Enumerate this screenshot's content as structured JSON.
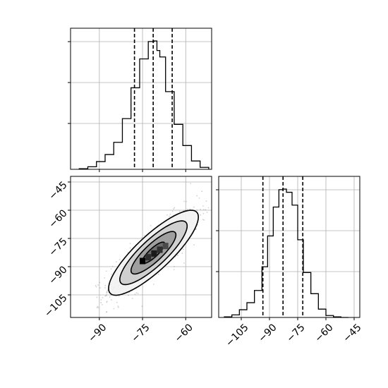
{
  "chart_data": [
    {
      "type": "histogram",
      "panel": "top-left",
      "parameter_index": 1,
      "xlim": [
        -100,
        -51
      ],
      "ylim": [
        0,
        1
      ],
      "grid": true,
      "show_y_tick_labels": false,
      "show_x_tick_labels": false,
      "bin_edges": [
        -97,
        -94,
        -91,
        -88,
        -85,
        -82,
        -79,
        -76,
        -73,
        -71,
        -70,
        -69,
        -67,
        -64,
        -61,
        -58,
        -55,
        -52
      ],
      "counts_relative": [
        0.005,
        0.02,
        0.06,
        0.115,
        0.21,
        0.395,
        0.635,
        0.86,
        0.995,
        1.0,
        0.925,
        0.875,
        0.605,
        0.35,
        0.185,
        0.065,
        0.015
      ],
      "quantile_lines": [
        -77.8,
        -71.3,
        -64.7
      ],
      "line_style": "dashed",
      "line_color": "#000000"
    },
    {
      "type": "contour_density_scatter",
      "panel": "bottom-left",
      "xlim": [
        -100,
        -51
      ],
      "ylim": [
        -117,
        -42
      ],
      "x_tick_values": [
        -90,
        -75,
        -60
      ],
      "x_tick_labels": [
        "−90",
        "−75",
        "−60"
      ],
      "y_tick_values": [
        -45,
        -60,
        -75,
        -90,
        -105
      ],
      "y_tick_labels": [
        "−45",
        "−60",
        "−75",
        "−90",
        "−105"
      ],
      "grid": true,
      "scatter": {
        "center": [
          -71.2,
          -82.6
        ],
        "sd_x": 7.8,
        "sd_y": 11.3,
        "correlation": 0.84,
        "n_points": 900,
        "color": "#7f7f7f"
      },
      "density_cells": [
        {
          "x": -71,
          "y": -83,
          "shade": "#1a1a1a"
        },
        {
          "x": -69,
          "y": -81,
          "shade": "#2e2e2e"
        },
        {
          "x": -73,
          "y": -85,
          "shade": "#2e2e2e"
        },
        {
          "x": -67,
          "y": -79,
          "shade": "#4a4a4a"
        },
        {
          "x": -75,
          "y": -87,
          "shade": "#000000"
        }
      ],
      "contour_levels_sigma": [
        0.5,
        1.0,
        1.5,
        2.0
      ],
      "contour_fill": [
        "#666666",
        "#999999",
        "#cccccc",
        "#f2f2f2"
      ]
    },
    {
      "type": "histogram",
      "panel": "bottom-right",
      "parameter_index": 2,
      "xlim": [
        -117,
        -42
      ],
      "ylim": [
        0,
        1
      ],
      "grid": true,
      "x_tick_values": [
        -105,
        -90,
        -75,
        -60,
        -45
      ],
      "x_tick_labels": [
        "−105",
        "−90",
        "−75",
        "−60",
        "−45"
      ],
      "show_y_tick_labels": false,
      "bin_edges": [
        -114,
        -110,
        -106,
        -102,
        -98,
        -94,
        -91,
        -88,
        -85,
        -83,
        -81,
        -78,
        -75,
        -72,
        -68,
        -64,
        -60,
        -56,
        -52,
        -48
      ],
      "counts_relative": [
        0.005,
        0.02,
        0.06,
        0.115,
        0.21,
        0.395,
        0.635,
        0.86,
        0.995,
        1.0,
        0.975,
        0.875,
        0.605,
        0.35,
        0.185,
        0.065,
        0.015,
        0.005,
        0.0
      ],
      "quantile_lines": [
        -93.5,
        -82.8,
        -72.3
      ],
      "line_style": "dashed",
      "line_color": "#000000"
    }
  ]
}
